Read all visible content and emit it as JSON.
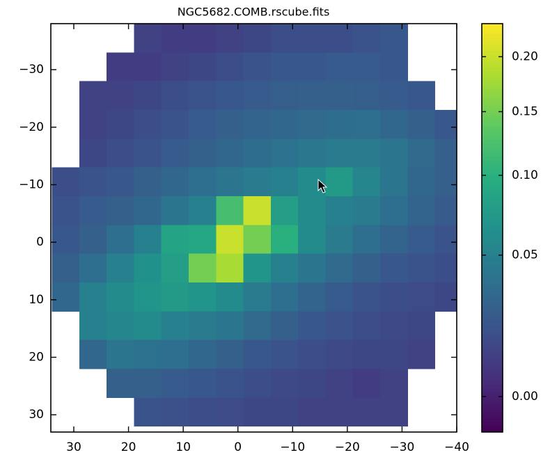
{
  "chart_data": {
    "type": "heatmap",
    "title": "NGC5682.COMB.rscube.fits",
    "x": [
      31.5,
      26.5,
      21.5,
      16.5,
      11.5,
      6.5,
      1.5,
      -3.5,
      -8.5,
      -13.5,
      -18.5,
      -23.5,
      -28.5,
      -33.5,
      -38.5
    ],
    "y": [
      -35.5,
      -30.5,
      -25.5,
      -20.5,
      -15.5,
      -10.5,
      -5.5,
      -0.5,
      4.5,
      9.5,
      14.5,
      19.5,
      24.5,
      29.5
    ],
    "values": [
      [
        null,
        null,
        null,
        0.01,
        0.008,
        0.008,
        0.01,
        0.012,
        0.015,
        0.015,
        0.015,
        0.018,
        0.02,
        null,
        null
      ],
      [
        null,
        null,
        0.008,
        0.008,
        0.01,
        0.012,
        0.015,
        0.018,
        0.02,
        0.02,
        0.022,
        0.022,
        0.02,
        null,
        null
      ],
      [
        null,
        0.01,
        0.01,
        0.012,
        0.015,
        0.018,
        0.02,
        0.022,
        0.024,
        0.025,
        0.025,
        0.024,
        0.022,
        0.02,
        null
      ],
      [
        null,
        0.01,
        0.012,
        0.015,
        0.018,
        0.022,
        0.025,
        0.028,
        0.03,
        0.032,
        0.034,
        0.035,
        0.03,
        0.025,
        0.02
      ],
      [
        null,
        0.012,
        0.015,
        0.018,
        0.022,
        0.026,
        0.03,
        0.034,
        0.038,
        0.042,
        0.045,
        0.045,
        0.04,
        0.032,
        0.025
      ],
      [
        0.015,
        0.018,
        0.02,
        0.025,
        0.03,
        0.035,
        0.04,
        0.045,
        0.05,
        0.06,
        0.075,
        0.055,
        0.04,
        0.03,
        0.025
      ],
      [
        0.018,
        0.022,
        0.025,
        0.03,
        0.04,
        0.05,
        0.12,
        0.2,
        0.08,
        0.06,
        0.05,
        0.045,
        0.035,
        0.028,
        0.022
      ],
      [
        0.02,
        0.025,
        0.035,
        0.05,
        0.085,
        0.09,
        0.2,
        0.15,
        0.1,
        0.06,
        0.045,
        0.035,
        0.028,
        0.022,
        0.018
      ],
      [
        0.025,
        0.035,
        0.05,
        0.065,
        0.08,
        0.15,
        0.18,
        0.07,
        0.05,
        0.04,
        0.032,
        0.025,
        0.02,
        0.018,
        0.015
      ],
      [
        0.03,
        0.05,
        0.06,
        0.07,
        0.075,
        0.07,
        0.06,
        0.045,
        0.035,
        0.028,
        0.022,
        0.018,
        0.015,
        0.014,
        0.012
      ],
      [
        null,
        0.05,
        0.055,
        0.06,
        0.05,
        0.045,
        0.04,
        0.032,
        0.025,
        0.02,
        0.017,
        0.015,
        0.013,
        0.012,
        null
      ],
      [
        null,
        0.03,
        0.04,
        0.038,
        0.035,
        0.03,
        0.025,
        0.02,
        0.018,
        0.015,
        0.013,
        0.012,
        0.012,
        0.01,
        null
      ],
      [
        null,
        null,
        0.025,
        0.025,
        0.022,
        0.02,
        0.018,
        0.015,
        0.013,
        0.012,
        0.01,
        0.008,
        0.01,
        null,
        null
      ],
      [
        null,
        null,
        null,
        0.018,
        0.016,
        0.015,
        0.014,
        0.012,
        0.012,
        0.01,
        0.01,
        0.01,
        0.01,
        null,
        null
      ]
    ],
    "xlim": [
      34.2,
      -40
    ],
    "ylim": [
      -38,
      33
    ],
    "xticks": [
      30,
      20,
      10,
      0,
      {
        "value": -10,
        "label": "−10"
      },
      {
        "value": -20,
        "label": "−20"
      },
      {
        "value": -30,
        "label": "−30"
      },
      {
        "value": -40,
        "label": "−40"
      }
    ],
    "yticks": [
      {
        "value": -30,
        "label": "−30"
      },
      {
        "value": -20,
        "label": "−20"
      },
      {
        "value": -10,
        "label": "−10"
      },
      0,
      10,
      20,
      30
    ],
    "colormap": "viridis",
    "clim": [
      -0.003,
      0.233
    ],
    "color_stretch_power": 0.56,
    "cticks": [
      {
        "value": 0,
        "label": "0.00"
      },
      0.05,
      {
        "value": 0.1,
        "label": "0.10"
      },
      0.15,
      {
        "value": 0.2,
        "label": "0.20"
      }
    ]
  }
}
